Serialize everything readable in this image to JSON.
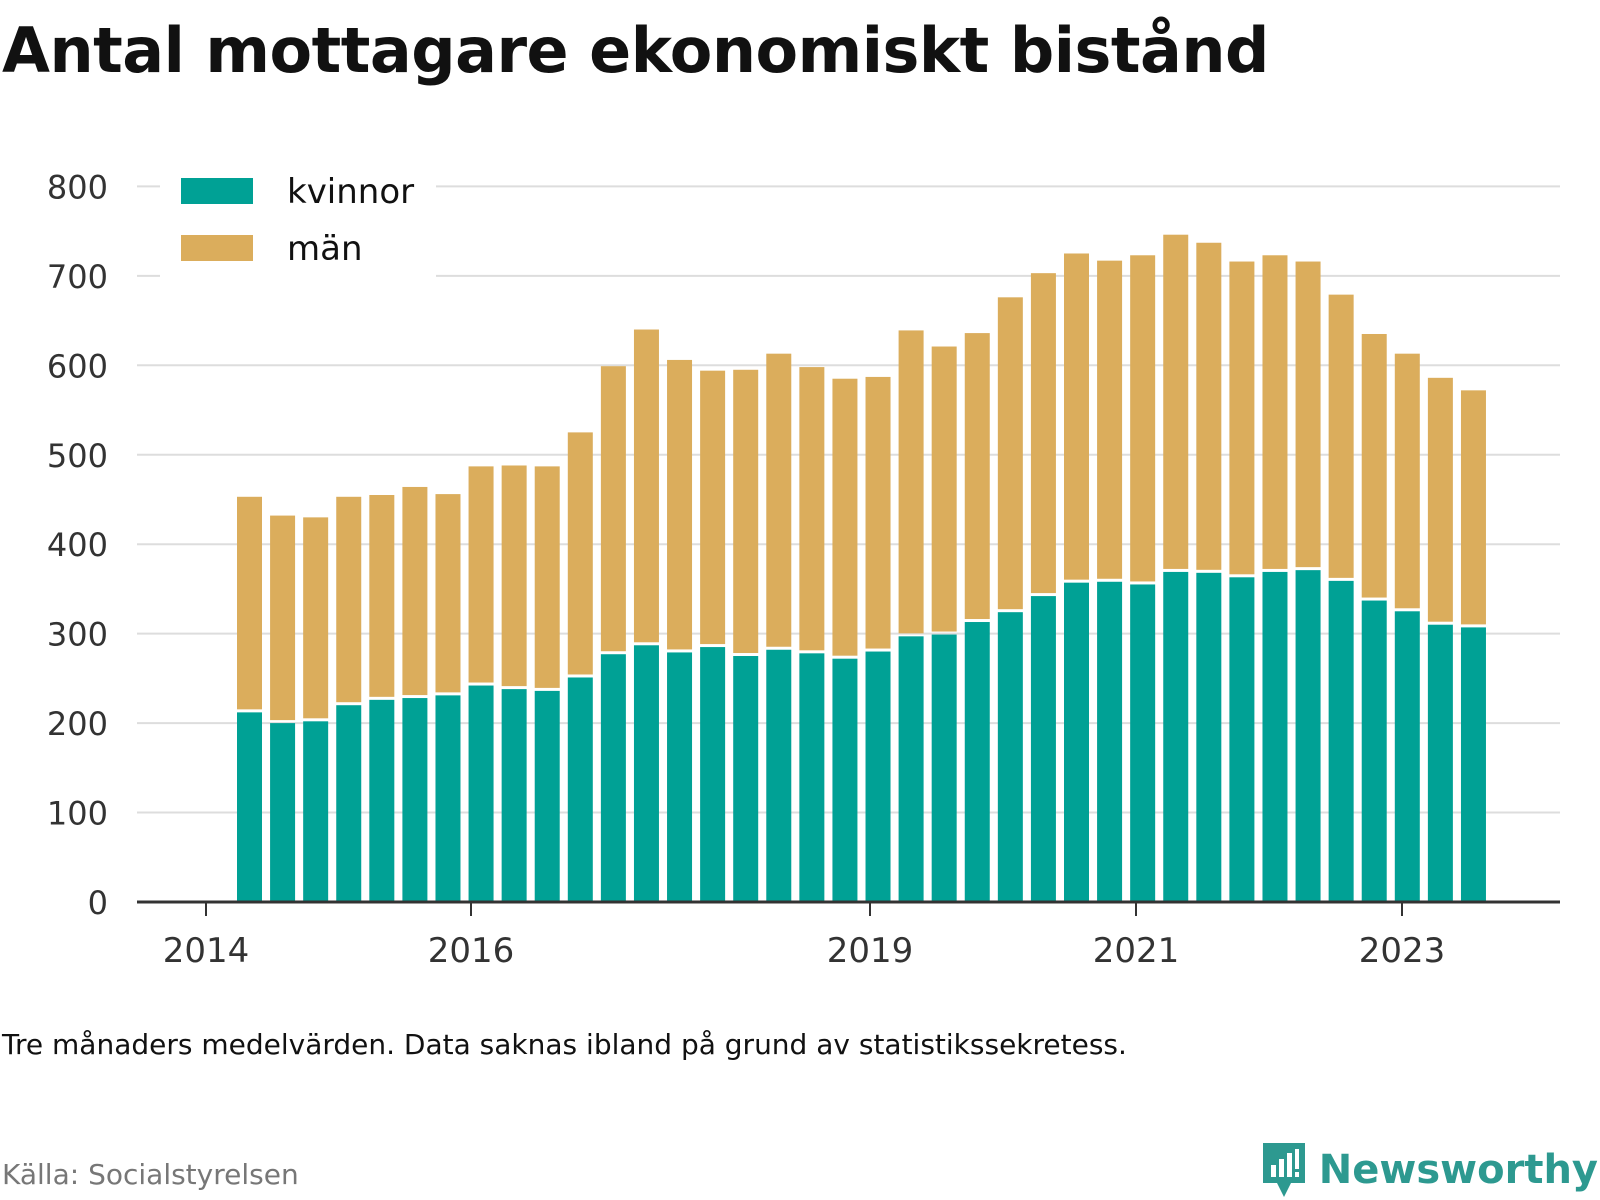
{
  "title": "Antal mottagare ekonomiskt bistånd",
  "note": "Tre månaders medelvärden. Data saknas ibland på grund av statistikssekretess.",
  "source": "Källa: Socialstyrelsen",
  "brand": "Newsworthy",
  "colors": {
    "kvinnor": "#00a195",
    "man": "#dbad5c",
    "grid": "#dddddd",
    "axis": "#333333",
    "brand": "#2d9990"
  },
  "chart_data": {
    "type": "bar",
    "stacked": true,
    "x_ticks": [
      "2014",
      "2016",
      "2019",
      "2021",
      "2023"
    ],
    "y_ticks": [
      "0",
      "100",
      "200",
      "300",
      "400",
      "500",
      "600",
      "700",
      "800"
    ],
    "ylim": [
      0,
      800
    ],
    "grid": true,
    "legend_position": "top-left",
    "series": [
      {
        "name": "kvinnor",
        "values": [
          212,
          200,
          202,
          220,
          226,
          228,
          231,
          242,
          238,
          236,
          251,
          277,
          287,
          279,
          285,
          275,
          282,
          278,
          272,
          280,
          297,
          299,
          313,
          324,
          342,
          357,
          358,
          355,
          369,
          368,
          363,
          369,
          371,
          359,
          337,
          325,
          310,
          307
        ]
      },
      {
        "name": "män",
        "values": [
          241,
          232,
          228,
          233,
          229,
          236,
          225,
          245,
          250,
          251,
          274,
          322,
          353,
          327,
          309,
          320,
          331,
          320,
          313,
          307,
          342,
          322,
          323,
          352,
          361,
          368,
          359,
          368,
          377,
          369,
          353,
          354,
          345,
          320,
          298,
          288,
          276,
          265
        ]
      }
    ]
  }
}
